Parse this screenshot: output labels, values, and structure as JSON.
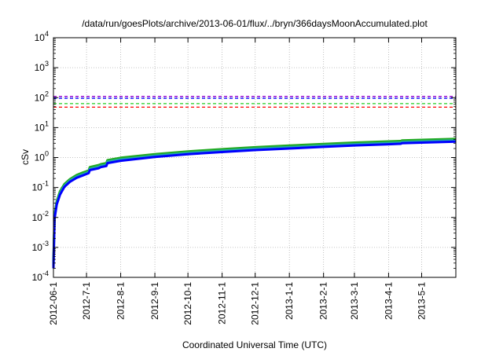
{
  "chart_data": {
    "type": "line",
    "title": "/data/run/goesPlots/archive/2013-06-01/flux/../bryn/366daysMoonAccumulated.plot",
    "xlabel": "Coordinated Universal Time (UTC)",
    "ylabel": "cSv",
    "yscale": "log",
    "ylim": [
      0.0001,
      10000
    ],
    "y_ticks": [
      {
        "mantissa": "10",
        "exp": "-4"
      },
      {
        "mantissa": "10",
        "exp": "-3"
      },
      {
        "mantissa": "10",
        "exp": "-2"
      },
      {
        "mantissa": "10",
        "exp": "-1"
      },
      {
        "mantissa": "10",
        "exp": "0"
      },
      {
        "mantissa": "10",
        "exp": "1"
      },
      {
        "mantissa": "10",
        "exp": "2"
      },
      {
        "mantissa": "10",
        "exp": "3"
      },
      {
        "mantissa": "10",
        "exp": "4"
      }
    ],
    "x_range": [
      "2012-06-01",
      "2013-06-01"
    ],
    "x_ticks": [
      "2012-06-1",
      "2012-7-1",
      "2012-8-1",
      "2012-9-1",
      "2012-10-1",
      "2012-11-1",
      "2012-12-1",
      "2013-1-1",
      "2013-2-1",
      "2013-3-1",
      "2013-4-1",
      "2013-5-1"
    ],
    "x_tick_dates": [
      "2012-06-01",
      "2012-07-01",
      "2012-08-01",
      "2012-09-01",
      "2012-10-01",
      "2012-11-01",
      "2012-12-01",
      "2013-01-01",
      "2013-02-01",
      "2013-03-01",
      "2013-04-01",
      "2013-05-01"
    ],
    "grid": true,
    "thresholds": [
      {
        "y": 110,
        "color": "#9400d3",
        "style": "dashed"
      },
      {
        "y": 95,
        "color": "#0000ff",
        "style": "dashed"
      },
      {
        "y": 63,
        "color": "#22cc22",
        "style": "dashed"
      },
      {
        "y": 48,
        "color": "#ff0000",
        "style": "dashed"
      }
    ],
    "series": [
      {
        "color": "#22aa22",
        "x": [
          "2012-06-01",
          "2012-06-02",
          "2012-06-04",
          "2012-06-07",
          "2012-06-11",
          "2012-06-16",
          "2012-06-22",
          "2012-06-28",
          "2012-07-03",
          "2012-07-04",
          "2012-07-12",
          "2012-07-14",
          "2012-07-19",
          "2012-07-20",
          "2012-08-01",
          "2012-09-01",
          "2012-10-01",
          "2012-11-01",
          "2012-12-01",
          "2013-01-01",
          "2013-02-01",
          "2013-03-01",
          "2013-04-01",
          "2013-04-12",
          "2013-04-13",
          "2013-05-01",
          "2013-06-01"
        ],
        "values": [
          0.0003,
          0.012,
          0.035,
          0.075,
          0.13,
          0.19,
          0.26,
          0.32,
          0.37,
          0.48,
          0.56,
          0.6,
          0.65,
          0.82,
          0.98,
          1.3,
          1.6,
          1.9,
          2.2,
          2.5,
          2.85,
          3.15,
          3.45,
          3.55,
          3.7,
          3.9,
          4.2
        ]
      },
      {
        "color": "#22aaaa",
        "x": [
          "2012-06-01",
          "2012-06-02",
          "2012-06-04",
          "2012-06-07",
          "2012-06-11",
          "2012-06-16",
          "2012-06-22",
          "2012-06-28",
          "2012-07-03",
          "2012-07-04",
          "2012-07-12",
          "2012-07-14",
          "2012-07-19",
          "2012-07-20",
          "2012-08-01",
          "2012-09-01",
          "2012-10-01",
          "2012-11-01",
          "2012-12-01",
          "2013-01-01",
          "2013-02-01",
          "2013-03-01",
          "2013-04-01",
          "2013-04-12",
          "2013-04-13",
          "2013-05-01",
          "2013-06-01"
        ],
        "values": [
          0.00025,
          0.01,
          0.03,
          0.065,
          0.115,
          0.17,
          0.23,
          0.28,
          0.33,
          0.42,
          0.49,
          0.53,
          0.57,
          0.72,
          0.86,
          1.15,
          1.42,
          1.68,
          1.95,
          2.2,
          2.5,
          2.78,
          3.05,
          3.15,
          3.28,
          3.45,
          3.7
        ]
      },
      {
        "color": "#0000ff",
        "x": [
          "2012-06-01",
          "2012-06-02",
          "2012-06-04",
          "2012-06-07",
          "2012-06-11",
          "2012-06-16",
          "2012-06-22",
          "2012-06-28",
          "2012-07-03",
          "2012-07-04",
          "2012-07-12",
          "2012-07-14",
          "2012-07-19",
          "2012-07-20",
          "2012-08-01",
          "2012-09-01",
          "2012-10-01",
          "2012-11-01",
          "2012-12-01",
          "2013-01-01",
          "2013-02-01",
          "2013-03-01",
          "2013-04-01",
          "2013-04-12",
          "2013-04-13",
          "2013-05-01",
          "2013-06-01"
        ],
        "values": [
          0.0002,
          0.009,
          0.027,
          0.058,
          0.105,
          0.155,
          0.21,
          0.255,
          0.3,
          0.38,
          0.44,
          0.48,
          0.52,
          0.65,
          0.78,
          1.05,
          1.3,
          1.53,
          1.78,
          2.0,
          2.28,
          2.53,
          2.78,
          2.88,
          3.0,
          3.15,
          3.4
        ]
      }
    ]
  }
}
